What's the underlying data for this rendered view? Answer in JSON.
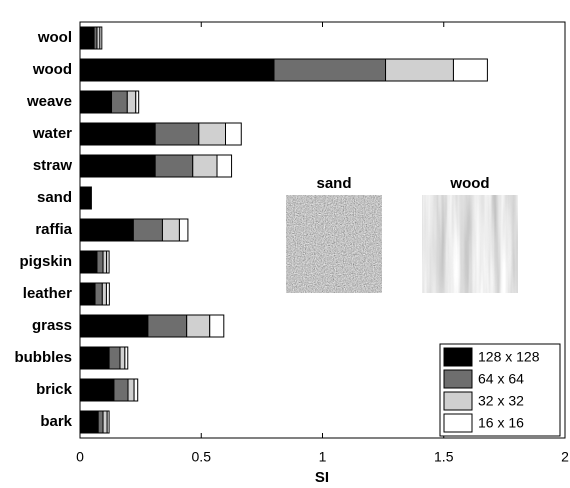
{
  "chart_data": {
    "type": "stacked-barh",
    "categories": [
      "wool",
      "wood",
      "weave",
      "water",
      "straw",
      "sand",
      "raffia",
      "pigskin",
      "leather",
      "grass",
      "bubbles",
      "brick",
      "bark"
    ],
    "series": [
      {
        "name": "128 x 128",
        "color": "#000000",
        "values": [
          0.058,
          0.8,
          0.13,
          0.31,
          0.31,
          0.037,
          0.22,
          0.07,
          0.062,
          0.28,
          0.12,
          0.14,
          0.075
        ]
      },
      {
        "name": "64 x 64",
        "color": "#6e6e6e",
        "values": [
          0.012,
          0.46,
          0.065,
          0.18,
          0.155,
          0.004,
          0.12,
          0.025,
          0.03,
          0.16,
          0.045,
          0.058,
          0.02
        ]
      },
      {
        "name": "32 x 32",
        "color": "#d0d0d0",
        "values": [
          0.012,
          0.28,
          0.035,
          0.11,
          0.1,
          0.003,
          0.07,
          0.015,
          0.017,
          0.095,
          0.02,
          0.025,
          0.017
        ]
      },
      {
        "name": "16 x 16",
        "color": "#ffffff",
        "values": [
          0.008,
          0.14,
          0.012,
          0.065,
          0.06,
          0.003,
          0.035,
          0.01,
          0.012,
          0.058,
          0.012,
          0.015,
          0.008
        ]
      }
    ],
    "xlim": [
      0,
      2
    ],
    "xticks": [
      0,
      0.5,
      1,
      1.5,
      2
    ],
    "x_label": "SI",
    "legend": "lower right",
    "annotations": [
      "sand",
      "wood"
    ]
  }
}
